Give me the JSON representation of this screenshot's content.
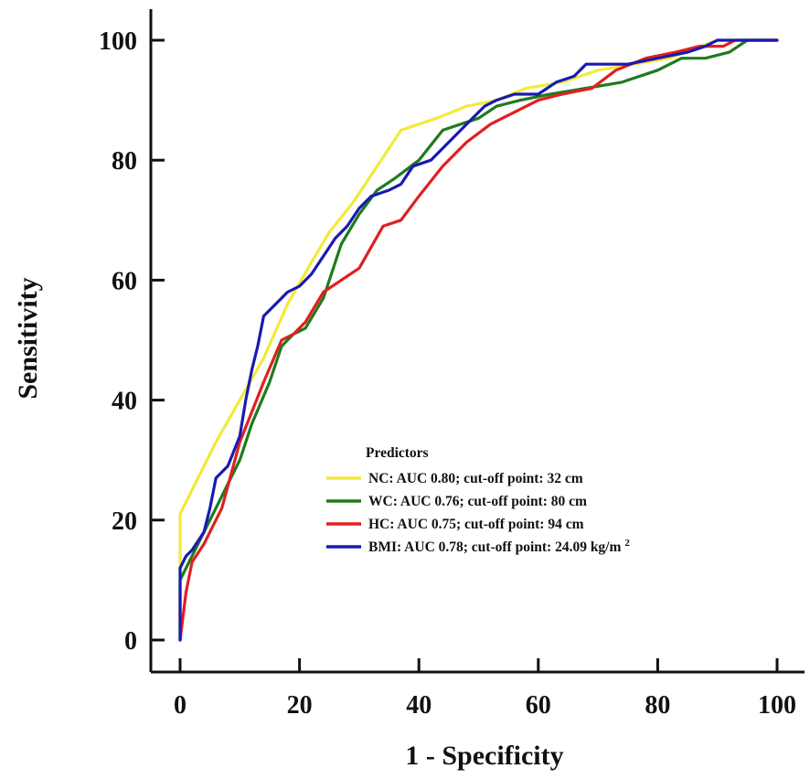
{
  "chart_data": {
    "type": "line",
    "title": "",
    "xlabel": "1 - Specificity",
    "ylabel": "Sensitivity",
    "xlim": [
      0,
      100
    ],
    "ylim": [
      0,
      100
    ],
    "x_ticks": [
      "0",
      "20",
      "40",
      "60",
      "80",
      "100"
    ],
    "y_ticks": [
      "0",
      "20",
      "40",
      "60",
      "80",
      "100"
    ],
    "grid": false,
    "legend": {
      "title": "Predictors",
      "position": "bottom-right"
    },
    "series": [
      {
        "name": "NC",
        "label": "NC: AUC 0.80; cut-off point: 32 cm",
        "color": "#f2ea3a",
        "points": [
          [
            0,
            0
          ],
          [
            0,
            12
          ],
          [
            0,
            21
          ],
          [
            1,
            23
          ],
          [
            3,
            27
          ],
          [
            6,
            33
          ],
          [
            10,
            40
          ],
          [
            14,
            47
          ],
          [
            18,
            56
          ],
          [
            22,
            63
          ],
          [
            25,
            68
          ],
          [
            29,
            73
          ],
          [
            33,
            79
          ],
          [
            37,
            85
          ],
          [
            43,
            87
          ],
          [
            48,
            89
          ],
          [
            53,
            90
          ],
          [
            58,
            92
          ],
          [
            64,
            93
          ],
          [
            70,
            95
          ],
          [
            76,
            96
          ],
          [
            82,
            97
          ],
          [
            87,
            99
          ],
          [
            90,
            100
          ],
          [
            100,
            100
          ]
        ]
      },
      {
        "name": "WC",
        "label": "WC: AUC 0.76; cut-off point: 80 cm",
        "color": "#1e7b1e",
        "points": [
          [
            0,
            0
          ],
          [
            0,
            10
          ],
          [
            1,
            12
          ],
          [
            3,
            16
          ],
          [
            5,
            20
          ],
          [
            8,
            26
          ],
          [
            10,
            30
          ],
          [
            12,
            36
          ],
          [
            15,
            43
          ],
          [
            17,
            49
          ],
          [
            19,
            51
          ],
          [
            21,
            52
          ],
          [
            24,
            57
          ],
          [
            27,
            66
          ],
          [
            30,
            71
          ],
          [
            33,
            75
          ],
          [
            36,
            77
          ],
          [
            40,
            80
          ],
          [
            44,
            85
          ],
          [
            47,
            86
          ],
          [
            50,
            87
          ],
          [
            53,
            89
          ],
          [
            57,
            90
          ],
          [
            62,
            91
          ],
          [
            68,
            92
          ],
          [
            74,
            93
          ],
          [
            80,
            95
          ],
          [
            84,
            97
          ],
          [
            88,
            97
          ],
          [
            92,
            98
          ],
          [
            95,
            100
          ],
          [
            100,
            100
          ]
        ]
      },
      {
        "name": "HC",
        "label": "HC: AUC 0.75; cut-off point: 94 cm",
        "color": "#e02020",
        "points": [
          [
            0,
            0
          ],
          [
            1,
            8
          ],
          [
            2,
            13
          ],
          [
            4,
            16
          ],
          [
            7,
            22
          ],
          [
            10,
            33
          ],
          [
            12,
            38
          ],
          [
            14,
            43
          ],
          [
            17,
            50
          ],
          [
            19,
            51
          ],
          [
            21,
            53
          ],
          [
            24,
            58
          ],
          [
            27,
            60
          ],
          [
            30,
            62
          ],
          [
            34,
            69
          ],
          [
            37,
            70
          ],
          [
            40,
            74
          ],
          [
            44,
            79
          ],
          [
            48,
            83
          ],
          [
            52,
            86
          ],
          [
            56,
            88
          ],
          [
            60,
            90
          ],
          [
            64,
            91
          ],
          [
            69,
            92
          ],
          [
            73,
            95
          ],
          [
            78,
            97
          ],
          [
            83,
            98
          ],
          [
            87,
            99
          ],
          [
            91,
            99
          ],
          [
            93,
            100
          ],
          [
            100,
            100
          ]
        ]
      },
      {
        "name": "BMI",
        "label": "BMI: AUC 0.78; cut-off point: 24.09 kg/m",
        "label_sup": "2",
        "color": "#1a1ab0",
        "points": [
          [
            0,
            0
          ],
          [
            0,
            5
          ],
          [
            0,
            8
          ],
          [
            0,
            12
          ],
          [
            1,
            14
          ],
          [
            2,
            15
          ],
          [
            4,
            18
          ],
          [
            5,
            22
          ],
          [
            6,
            27
          ],
          [
            8,
            29
          ],
          [
            10,
            34
          ],
          [
            11,
            40
          ],
          [
            12,
            45
          ],
          [
            13,
            49
          ],
          [
            14,
            54
          ],
          [
            16,
            56
          ],
          [
            18,
            58
          ],
          [
            20,
            59
          ],
          [
            22,
            61
          ],
          [
            24,
            64
          ],
          [
            26,
            67
          ],
          [
            28,
            69
          ],
          [
            30,
            72
          ],
          [
            32,
            74
          ],
          [
            35,
            75
          ],
          [
            37,
            76
          ],
          [
            39,
            79
          ],
          [
            42,
            80
          ],
          [
            45,
            83
          ],
          [
            48,
            86
          ],
          [
            51,
            89
          ],
          [
            53,
            90
          ],
          [
            56,
            91
          ],
          [
            60,
            91
          ],
          [
            63,
            93
          ],
          [
            66,
            94
          ],
          [
            68,
            96
          ],
          [
            71,
            96
          ],
          [
            75,
            96
          ],
          [
            80,
            97
          ],
          [
            85,
            98
          ],
          [
            88,
            99
          ],
          [
            90,
            100
          ],
          [
            100,
            100
          ]
        ]
      }
    ]
  }
}
